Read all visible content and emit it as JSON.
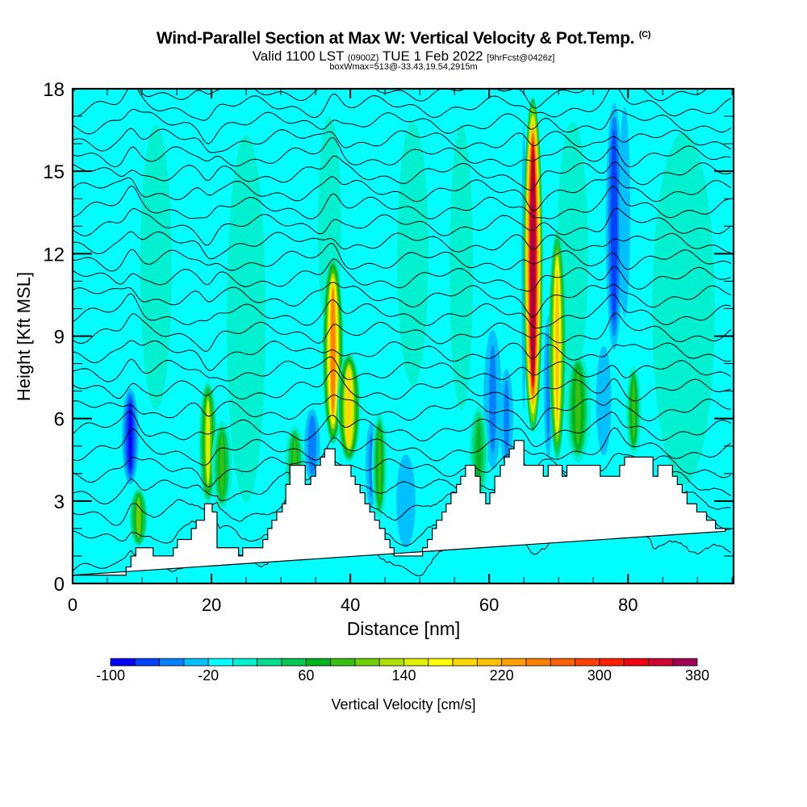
{
  "header": {
    "title": "Wind-Parallel Section at Max W: Vertical Velocity & Pot.Temp.",
    "copyright": "(C)",
    "valid_prefix": "Valid 1100 LST",
    "valid_utc": "(0900Z)",
    "valid_date": "TUE 1 Feb 2022",
    "forecast": "[9hrFcst@0426z]",
    "boxwmax": "boxWmax=513@-33.43,19.54,2915m"
  },
  "chart_data": {
    "type": "heatmap",
    "title": "Wind-Parallel Section at Max W: Vertical Velocity & Pot.Temp.",
    "subtitle": "Valid 1100 LST (0900Z) TUE 1 Feb 2022 [9hrFcst@0426z]",
    "xlabel": "Distance [nm]",
    "ylabel": "Height [Kft MSL]",
    "xlim": [
      0,
      95.2
    ],
    "ylim": [
      0,
      18
    ],
    "xticks": [
      0,
      20,
      40,
      60,
      80
    ],
    "xticks_minor_step": 5,
    "yticks": [
      0,
      3,
      6,
      9,
      12,
      15,
      18
    ],
    "yticks_minor_step": 1,
    "background_value_cms": -10,
    "colorbar": {
      "label": "Vertical Velocity [cm/s]",
      "min": -100,
      "max": 380,
      "step": 20,
      "tick_labels": [
        "-100",
        "-20",
        "60",
        "140",
        "220",
        "300",
        "380"
      ],
      "tick_values": [
        -100,
        -20,
        60,
        140,
        220,
        300,
        380
      ],
      "colors": [
        "#0000ff",
        "#0040ff",
        "#0080ff",
        "#00c0ff",
        "#00ffff",
        "#00f0d0",
        "#00dc90",
        "#00c850",
        "#00b420",
        "#38c010",
        "#70d000",
        "#b0e000",
        "#e0f000",
        "#ffff00",
        "#ffd800",
        "#ffc000",
        "#ffa000",
        "#ff8000",
        "#ff6000",
        "#ff4000",
        "#ff2000",
        "#f00010",
        "#d00030",
        "#a00050"
      ]
    },
    "terrain_kft": {
      "distance_nm": [
        0,
        7.7,
        7.7,
        8.4,
        8.4,
        9.1,
        9.1,
        11.6,
        11.6,
        14.5,
        14.5,
        15.1,
        15.1,
        17.1,
        17.1,
        17.8,
        17.8,
        19.0,
        19.0,
        20.1,
        20.1,
        20.8,
        20.8,
        23.9,
        23.9,
        24.5,
        24.5,
        27.4,
        27.4,
        28.1,
        28.1,
        28.7,
        28.7,
        29.4,
        29.4,
        30.2,
        30.2,
        30.7,
        30.7,
        31.3,
        31.3,
        33.5,
        33.5,
        34.3,
        34.3,
        35.0,
        35.0,
        35.7,
        35.7,
        36.3,
        36.3,
        37.0,
        37.0,
        37.8,
        37.8,
        39.5,
        39.5,
        40.1,
        40.1,
        40.7,
        40.7,
        41.4,
        41.4,
        42.1,
        42.1,
        42.8,
        42.8,
        43.5,
        43.5,
        44.2,
        44.2,
        45.0,
        45.0,
        45.7,
        45.7,
        46.3,
        46.3,
        47.0,
        47.0,
        47.6,
        47.6,
        48.4,
        48.4,
        50.4,
        50.4,
        51.1,
        51.1,
        51.8,
        51.8,
        52.4,
        52.4,
        53.2,
        53.2,
        53.8,
        53.8,
        54.5,
        54.5,
        55.3,
        55.3,
        55.9,
        55.9,
        56.6,
        56.6,
        57.3,
        57.3,
        58.0,
        58.0,
        58.7,
        58.7,
        59.5,
        59.5,
        60.1,
        60.1,
        60.8,
        60.8,
        61.6,
        61.6,
        62.2,
        62.2,
        62.9,
        62.9,
        63.6,
        63.6,
        64.3,
        64.3,
        65.0,
        65.0,
        67.1,
        67.1,
        67.8,
        67.8,
        68.5,
        68.5,
        70.5,
        70.5,
        71.2,
        71.2,
        72.6,
        72.6,
        76.0,
        76.0,
        77.4,
        77.4,
        78.8,
        78.8,
        79.5,
        79.5,
        81.6,
        81.6,
        83.6,
        83.6,
        84.3,
        84.3,
        86.4,
        86.4,
        87.1,
        87.1,
        87.8,
        87.8,
        88.5,
        88.5,
        89.9,
        89.9,
        91.3,
        91.3,
        92.6,
        92.6,
        94.0,
        94.0,
        95.2
      ],
      "height_kft": [
        0.3,
        0.3,
        0.6,
        0.6,
        1.0,
        1.0,
        1.3,
        1.3,
        1.0,
        1.0,
        1.3,
        1.3,
        1.6,
        1.6,
        2.0,
        2.0,
        2.3,
        2.3,
        2.9,
        2.9,
        2.6,
        2.6,
        1.3,
        1.3,
        1.0,
        1.0,
        1.3,
        1.3,
        1.6,
        1.6,
        2.0,
        2.0,
        2.3,
        2.3,
        2.6,
        2.6,
        2.9,
        2.9,
        3.6,
        3.6,
        4.3,
        4.3,
        3.6,
        3.6,
        3.9,
        3.9,
        4.3,
        4.3,
        4.6,
        4.6,
        4.9,
        4.9,
        4.9,
        4.9,
        4.3,
        4.3,
        4.3,
        4.3,
        3.9,
        3.9,
        3.6,
        3.6,
        3.3,
        3.3,
        2.9,
        2.9,
        2.6,
        2.6,
        2.3,
        2.3,
        2.0,
        2.0,
        1.6,
        1.6,
        1.3,
        1.3,
        1.0,
        1.0,
        1.0,
        1.0,
        1.0,
        1.0,
        1.0,
        1.0,
        1.3,
        1.3,
        1.6,
        1.6,
        2.0,
        2.0,
        2.3,
        2.3,
        2.6,
        2.6,
        2.9,
        2.9,
        3.3,
        3.3,
        3.6,
        3.6,
        3.9,
        3.9,
        4.3,
        4.3,
        4.3,
        4.3,
        3.9,
        3.9,
        3.3,
        3.3,
        2.9,
        2.9,
        3.3,
        3.3,
        3.9,
        3.9,
        4.3,
        4.3,
        4.6,
        4.6,
        4.9,
        4.9,
        5.2,
        5.2,
        5.2,
        5.2,
        4.3,
        4.3,
        4.3,
        4.3,
        3.9,
        3.9,
        4.3,
        4.3,
        3.9,
        3.9,
        4.3,
        4.3,
        4.3,
        4.3,
        3.9,
        3.9,
        3.9,
        3.9,
        4.3,
        4.3,
        4.6,
        4.6,
        4.6,
        4.6,
        3.9,
        3.9,
        4.3,
        4.3,
        3.9,
        3.9,
        3.6,
        3.6,
        3.3,
        3.3,
        2.9,
        2.9,
        2.6,
        2.6,
        2.3,
        2.3,
        2.0,
        2.0,
        1.9
      ]
    },
    "updrafts": [
      {
        "x_nm": 9.5,
        "bottom_kft": 1.3,
        "top_kft": 3.5,
        "width_nm": 1.4,
        "peak_cms": 110
      },
      {
        "x_nm": 19.5,
        "bottom_kft": 2.8,
        "top_kft": 7.5,
        "width_nm": 1.4,
        "peak_cms": 140
      },
      {
        "x_nm": 21.5,
        "bottom_kft": 2.6,
        "top_kft": 6.0,
        "width_nm": 1.6,
        "peak_cms": 80
      },
      {
        "x_nm": 32.0,
        "bottom_kft": 2.9,
        "top_kft": 5.8,
        "width_nm": 1.5,
        "peak_cms": 80
      },
      {
        "x_nm": 37.5,
        "bottom_kft": 4.9,
        "top_kft": 12.0,
        "width_nm": 1.6,
        "peak_cms": 240
      },
      {
        "x_nm": 39.8,
        "bottom_kft": 4.3,
        "top_kft": 8.5,
        "width_nm": 1.8,
        "peak_cms": 180
      },
      {
        "x_nm": 44.2,
        "bottom_kft": 2.3,
        "top_kft": 6.3,
        "width_nm": 1.2,
        "peak_cms": 90
      },
      {
        "x_nm": 58.5,
        "bottom_kft": 3.0,
        "top_kft": 6.5,
        "width_nm": 1.5,
        "peak_cms": 60
      },
      {
        "x_nm": 66.3,
        "bottom_kft": 5.2,
        "top_kft": 18.0,
        "width_nm": 1.5,
        "peak_cms": 380
      },
      {
        "x_nm": 69.8,
        "bottom_kft": 4.3,
        "top_kft": 13.0,
        "width_nm": 1.3,
        "peak_cms": 200
      },
      {
        "x_nm": 72.8,
        "bottom_kft": 4.3,
        "top_kft": 8.5,
        "width_nm": 2.0,
        "peak_cms": 90
      },
      {
        "x_nm": 80.8,
        "bottom_kft": 4.6,
        "top_kft": 8.0,
        "width_nm": 1.2,
        "peak_cms": 90
      }
    ],
    "downdrafts": [
      {
        "x_nm": 8.3,
        "bottom_kft": 3.5,
        "top_kft": 7.2,
        "width_nm": 1.3,
        "peak_cms": -90
      },
      {
        "x_nm": 34.5,
        "bottom_kft": 3.6,
        "top_kft": 6.5,
        "width_nm": 1.4,
        "peak_cms": -60
      },
      {
        "x_nm": 43.0,
        "bottom_kft": 2.6,
        "top_kft": 6.0,
        "width_nm": 1.0,
        "peak_cms": -50
      },
      {
        "x_nm": 60.5,
        "bottom_kft": 3.9,
        "top_kft": 9.5,
        "width_nm": 1.6,
        "peak_cms": -50
      },
      {
        "x_nm": 62.5,
        "bottom_kft": 4.0,
        "top_kft": 8.0,
        "width_nm": 1.2,
        "peak_cms": -50
      },
      {
        "x_nm": 65.0,
        "bottom_kft": 5.0,
        "top_kft": 18.0,
        "width_nm": 0.6,
        "peak_cms": -30
      },
      {
        "x_nm": 68.5,
        "bottom_kft": 4.3,
        "top_kft": 10.0,
        "width_nm": 0.8,
        "peak_cms": -50
      },
      {
        "x_nm": 76.5,
        "bottom_kft": 4.3,
        "top_kft": 9.0,
        "width_nm": 1.6,
        "peak_cms": -40
      },
      {
        "x_nm": 78.0,
        "bottom_kft": 8.0,
        "top_kft": 18.0,
        "width_nm": 1.5,
        "peak_cms": -70
      },
      {
        "x_nm": 79.5,
        "bottom_kft": 9.0,
        "top_kft": 18.0,
        "width_nm": 1.2,
        "peak_cms": -40
      },
      {
        "x_nm": 48.0,
        "bottom_kft": 1.0,
        "top_kft": 5.0,
        "width_nm": 2.0,
        "peak_cms": -40
      }
    ],
    "weak_bands": [
      {
        "x_nm": 12.0,
        "bottom_kft": 5.0,
        "top_kft": 18.0,
        "width_nm": 4.0,
        "peak_cms": 10
      },
      {
        "x_nm": 25.0,
        "bottom_kft": 1.3,
        "top_kft": 18.0,
        "width_nm": 5.0,
        "peak_cms": 10
      },
      {
        "x_nm": 37.0,
        "bottom_kft": 8.0,
        "top_kft": 18.0,
        "width_nm": 3.0,
        "peak_cms": 10
      },
      {
        "x_nm": 49.0,
        "bottom_kft": 6.0,
        "top_kft": 18.0,
        "width_nm": 4.0,
        "peak_cms": 10
      },
      {
        "x_nm": 56.0,
        "bottom_kft": 5.0,
        "top_kft": 18.0,
        "width_nm": 3.0,
        "peak_cms": 10
      },
      {
        "x_nm": 72.0,
        "bottom_kft": 6.0,
        "top_kft": 18.0,
        "width_nm": 4.0,
        "peak_cms": 10
      },
      {
        "x_nm": 88.0,
        "bottom_kft": 2.0,
        "top_kft": 18.0,
        "width_nm": 8.0,
        "peak_cms": 10
      }
    ],
    "theta_contours": {
      "count": 26,
      "label_values_legible": false,
      "perturbation_centers_nm": [
        8.5,
        19.5,
        37.5,
        66.3,
        78.0
      ]
    }
  }
}
